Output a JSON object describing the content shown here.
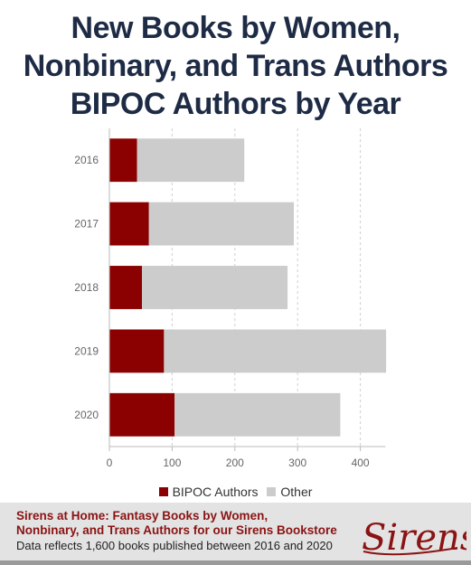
{
  "title_lines": [
    "New Books by Women,",
    "Nonbinary, and Trans Authors",
    "BIPOC Authors by Year"
  ],
  "chart_data": {
    "type": "bar",
    "orientation": "horizontal",
    "stacked": true,
    "categories": [
      "2016",
      "2017",
      "2018",
      "2019",
      "2020"
    ],
    "series": [
      {
        "name": "BIPOC Authors",
        "color": "#8b0000",
        "values": [
          44,
          63,
          52,
          87,
          104
        ]
      },
      {
        "name": "Other",
        "color": "#cccccc",
        "values": [
          171,
          231,
          232,
          354,
          264
        ]
      }
    ],
    "xlim": [
      0,
      440
    ],
    "x_ticks": [
      0,
      100,
      200,
      300,
      400
    ],
    "grid": true,
    "legend_position": "bottom"
  },
  "footer": {
    "title_line1": "Sirens at Home: Fantasy Books by Women,",
    "title_line2": "Nonbinary, and Trans Authors for our Sirens Bookstore",
    "note": "Data reflects 1,600 books published between 2016 and 2020",
    "logo_text": "Sirens"
  }
}
